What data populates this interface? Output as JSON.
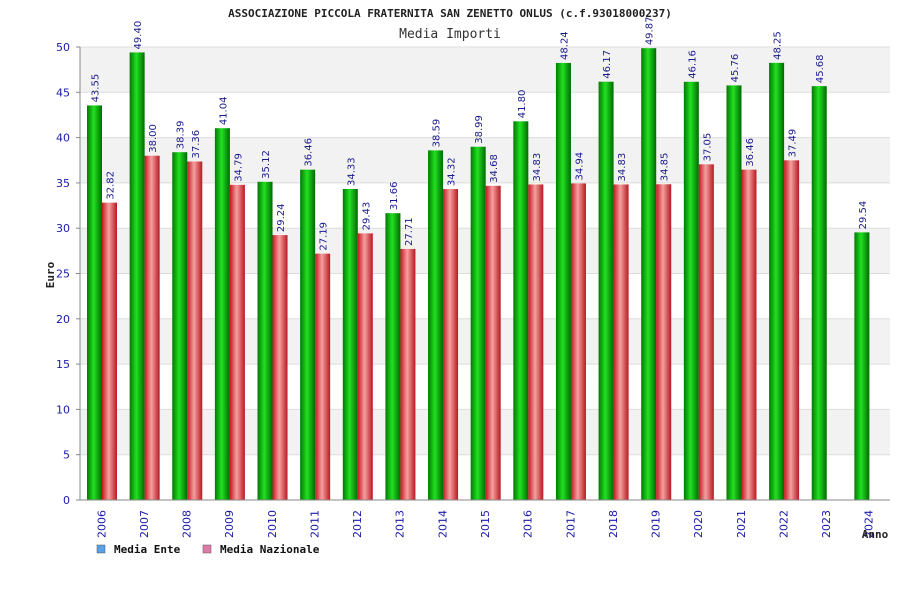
{
  "chart_data": {
    "type": "bar",
    "title": "ASSOCIAZIONE PICCOLA FRATERNITA SAN ZENETTO ONLUS (c.f.93018000237)",
    "subtitle": "Media Importi",
    "xlabel": "Anno",
    "ylabel": "Euro",
    "ylim": [
      0,
      50
    ],
    "yticks": [
      "0",
      "5",
      "10",
      "15",
      "20",
      "25",
      "30",
      "35",
      "40",
      "45",
      "50"
    ],
    "grid": true,
    "legend_position": "bottom-left",
    "categories": [
      "2006",
      "2007",
      "2008",
      "2009",
      "2010",
      "2011",
      "2012",
      "2013",
      "2014",
      "2015",
      "2016",
      "2017",
      "2018",
      "2019",
      "2020",
      "2021",
      "2022",
      "2023",
      "2024"
    ],
    "series": [
      {
        "name": "Media Ente",
        "color": "#00b000",
        "values": [
          43.55,
          49.4,
          38.39,
          41.04,
          35.12,
          36.46,
          34.33,
          31.66,
          38.59,
          38.99,
          41.8,
          48.24,
          46.17,
          49.87,
          46.16,
          45.76,
          48.25,
          45.68,
          29.54
        ],
        "labels": [
          "43.55",
          "49.40",
          "38.39",
          "41.04",
          "35.12",
          "36.46",
          "34.33",
          "31.66",
          "38.59",
          "38.99",
          "41.80",
          "48.24",
          "46.17",
          "49.87",
          "46.16",
          "45.76",
          "48.25",
          "45.68",
          "29.54"
        ]
      },
      {
        "name": "Media Nazionale",
        "color": "#e0303a",
        "values": [
          32.82,
          38.0,
          37.36,
          34.79,
          29.24,
          27.19,
          29.43,
          27.71,
          34.32,
          34.68,
          34.83,
          34.94,
          34.83,
          34.85,
          37.05,
          36.46,
          37.49,
          null,
          null
        ],
        "labels": [
          "32.82",
          "38.00",
          "37.36",
          "34.79",
          "29.24",
          "27.19",
          "29.43",
          "27.71",
          "34.32",
          "34.68",
          "34.83",
          "34.94",
          "34.83",
          "34.85",
          "37.05",
          "36.46",
          "37.49",
          "",
          ""
        ]
      }
    ],
    "legend": [
      {
        "label": "Media Ente",
        "swatch_color": "#5aa0e6"
      },
      {
        "label": "Media Nazionale",
        "swatch_color": "#e07aa8"
      }
    ]
  }
}
